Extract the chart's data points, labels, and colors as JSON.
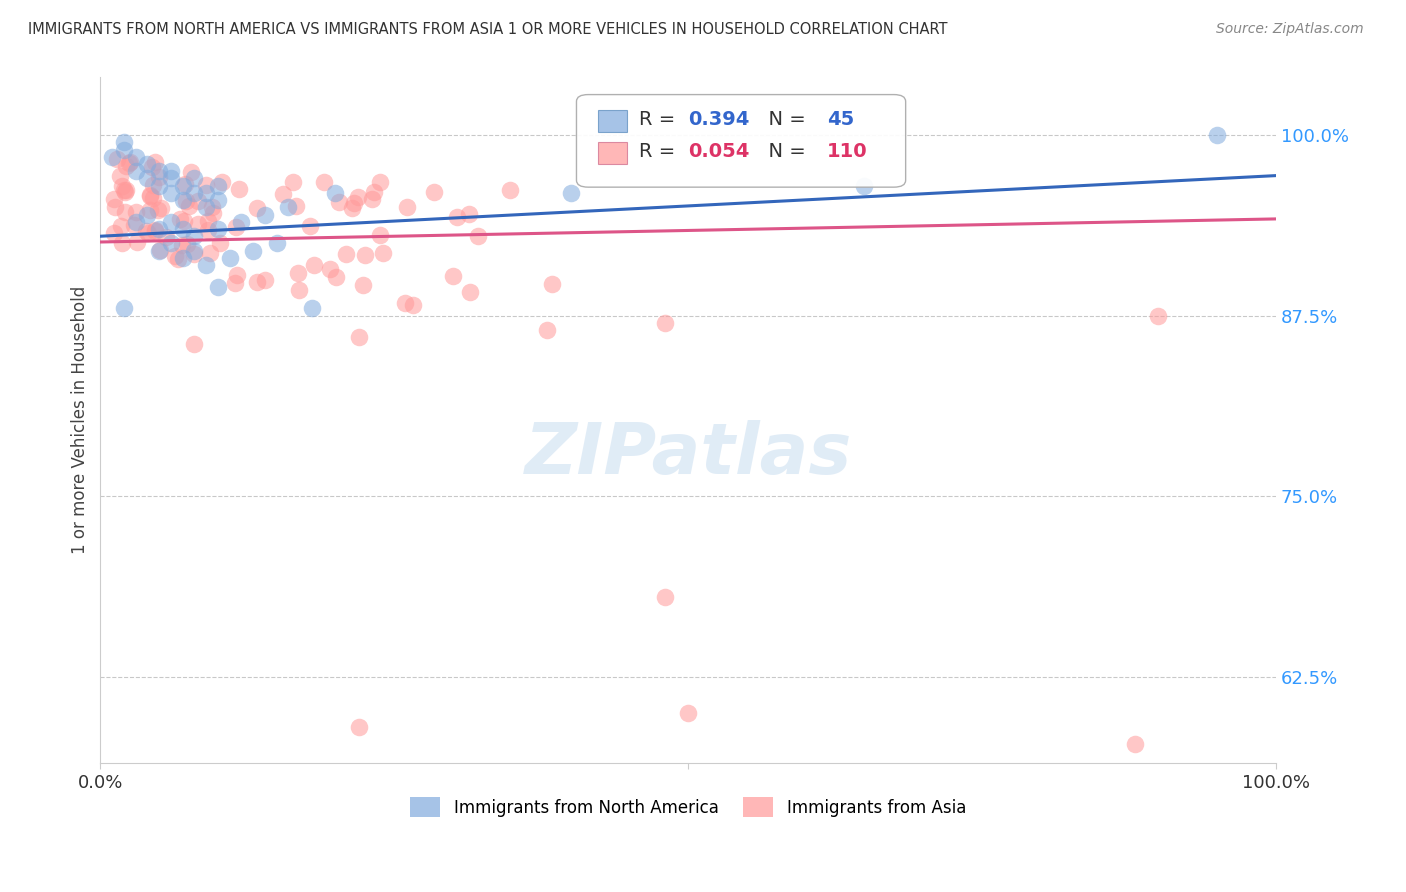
{
  "title": "IMMIGRANTS FROM NORTH AMERICA VS IMMIGRANTS FROM ASIA 1 OR MORE VEHICLES IN HOUSEHOLD CORRELATION CHART",
  "source": "Source: ZipAtlas.com",
  "ylabel": "1 or more Vehicles in Household",
  "ytick_values": [
    1.0,
    0.875,
    0.75,
    0.625
  ],
  "ytick_labels": [
    "100.0%",
    "87.5%",
    "75.0%",
    "62.5%"
  ],
  "xlim": [
    0.0,
    1.0
  ],
  "ylim": [
    0.565,
    1.04
  ],
  "legend_r_north": "0.394",
  "legend_n_north": "45",
  "legend_r_asia": "0.054",
  "legend_n_asia": "110",
  "north_america_color": "#80AADD",
  "asia_color": "#FF9999",
  "north_america_line_color": "#3366BB",
  "asia_line_color": "#DD5588",
  "na_line_x0": 0.0,
  "na_line_x1": 1.0,
  "na_line_y0": 0.93,
  "na_line_y1": 0.972,
  "asia_line_x0": 0.0,
  "asia_line_x1": 1.0,
  "asia_line_y0": 0.926,
  "asia_line_y1": 0.942,
  "watermark": "ZIPatlas",
  "bottom_legend_na": "Immigrants from North America",
  "bottom_legend_asia": "Immigrants from Asia"
}
